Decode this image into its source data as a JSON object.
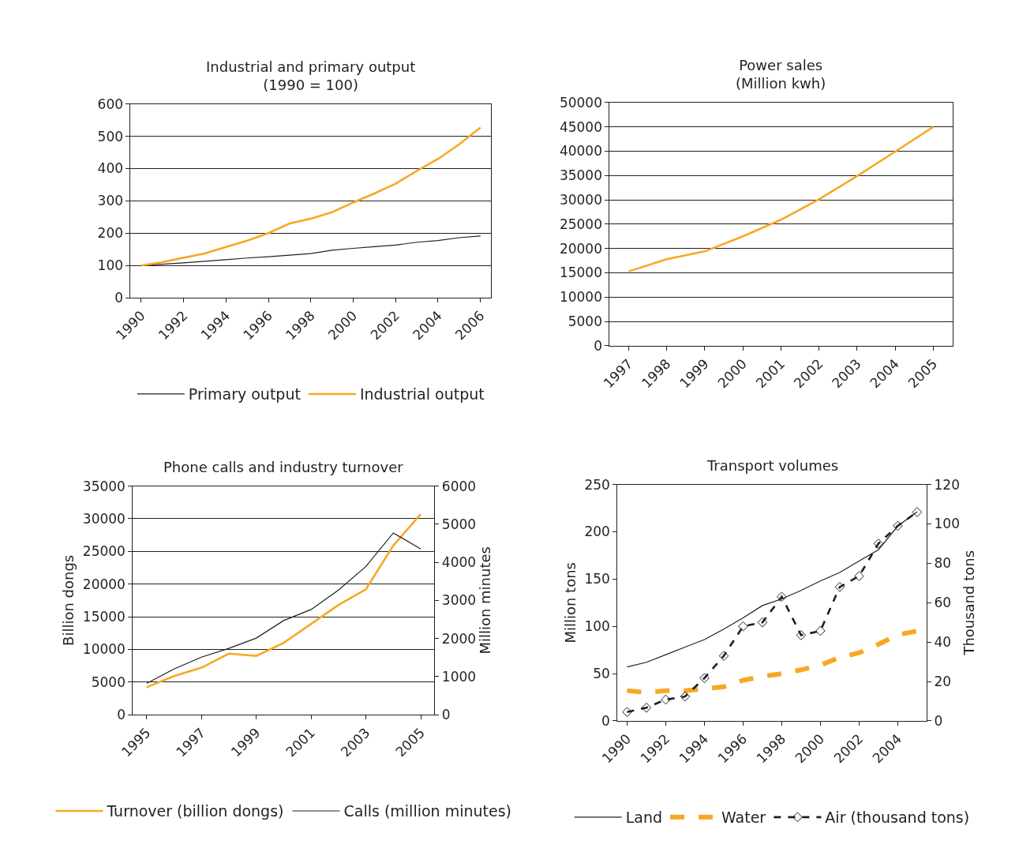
{
  "chart_data": [
    {
      "type": "line",
      "title": "Industrial and primary output\n(1990 = 100)",
      "categories": [
        "1990",
        null,
        "1992",
        null,
        "1994",
        null,
        "1996",
        null,
        "1998",
        null,
        "2000",
        null,
        "2002",
        null,
        "2004",
        null,
        "2006"
      ],
      "ylim": [
        0,
        600
      ],
      "yticks": [
        0,
        100,
        200,
        300,
        400,
        500,
        600
      ],
      "grid": "y",
      "legend": "bottom",
      "series": [
        {
          "name": "Primary output",
          "color": "#231f20",
          "values": [
            100,
            104,
            108,
            113,
            118,
            123,
            127,
            132,
            137,
            147,
            153,
            158,
            163,
            172,
            177,
            186,
            191
          ]
        },
        {
          "name": "Industrial output",
          "color": "#f7a823",
          "values": [
            100,
            110,
            124,
            137,
            157,
            177,
            200,
            230,
            245,
            265,
            295,
            323,
            353,
            393,
            430,
            475,
            527
          ]
        }
      ]
    },
    {
      "type": "line",
      "title": "Power sales\n(Million kwh)",
      "categories": [
        "1997",
        "1998",
        "1999",
        "2000",
        "2001",
        "2002",
        "2003",
        "2004",
        "2005"
      ],
      "ylim": [
        0,
        50000
      ],
      "yticks": [
        0,
        5000,
        10000,
        15000,
        20000,
        25000,
        30000,
        35000,
        40000,
        45000,
        50000
      ],
      "grid": "y",
      "series": [
        {
          "color": "#f7a823",
          "values": [
            15300,
            17800,
            19400,
            22500,
            25900,
            30100,
            34900,
            39900,
            45000
          ]
        }
      ]
    },
    {
      "type": "line",
      "title": "Phone calls and industry turnover",
      "ylabel": "Billion dongs",
      "y2label": "Million minutes",
      "categories": [
        "1995",
        null,
        "1997",
        null,
        "1999",
        null,
        "2001",
        null,
        "2003",
        null,
        "2005"
      ],
      "ylim": [
        0,
        35000
      ],
      "yticks": [
        0,
        5000,
        10000,
        15000,
        20000,
        25000,
        30000,
        35000
      ],
      "y2lim": [
        0,
        6000
      ],
      "y2ticks": [
        0,
        1000,
        2000,
        3000,
        4000,
        5000,
        6000
      ],
      "grid": "y",
      "legend": "bottom",
      "series": [
        {
          "name": "Turnover (billion dongs)",
          "color": "#f7a823",
          "values": [
            4200,
            5900,
            7200,
            9350,
            9000,
            11000,
            13900,
            16800,
            19200,
            25900,
            30700
          ]
        },
        {
          "name": "Calls (million minutes)",
          "color": "#231f20",
          "axis": "y2",
          "values": [
            820,
            1200,
            1510,
            1740,
            2010,
            2470,
            2760,
            3270,
            3890,
            4770,
            4350
          ]
        }
      ]
    },
    {
      "type": "line",
      "title": "Transport volumes",
      "ylabel": "Million tons",
      "y2label": "Thousand tons",
      "categories": [
        "1990",
        null,
        "1992",
        null,
        "1994",
        null,
        "1996",
        null,
        "1998",
        null,
        "2000",
        null,
        "2002",
        null,
        "2004",
        null
      ],
      "ylim": [
        0,
        250
      ],
      "yticks": [
        0,
        50,
        100,
        150,
        200,
        250
      ],
      "y2lim": [
        0,
        120
      ],
      "y2ticks": [
        0,
        20,
        40,
        60,
        80,
        100,
        120
      ],
      "grid": false,
      "legend": "bottom",
      "series": [
        {
          "name": "Land",
          "color": "#231f20",
          "values": [
            57,
            62,
            70,
            78,
            86,
            97,
            109,
            122,
            129,
            138,
            148,
            157,
            169,
            181,
            206,
            221
          ]
        },
        {
          "name": "Water",
          "color": "#f7a823",
          "line_style": "dashed",
          "values": [
            32,
            30,
            32,
            32,
            34,
            36,
            43,
            47,
            50,
            54,
            59,
            67,
            72,
            81,
            91,
            95
          ]
        },
        {
          "name": "Air (thousand tons)",
          "color": "#231f20",
          "axis": "y2",
          "line_style": "dashed",
          "marker": "diamond",
          "values": [
            4.5,
            6.7,
            10.8,
            12.4,
            21.7,
            33,
            48,
            50,
            63,
            43.5,
            45.7,
            68,
            73.5,
            90,
            99,
            106
          ]
        }
      ]
    }
  ]
}
